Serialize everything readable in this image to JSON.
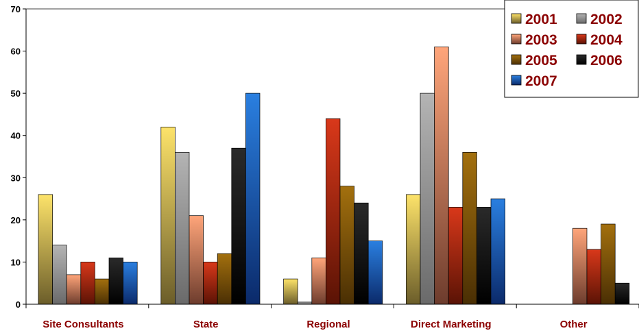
{
  "chart_data": {
    "type": "bar",
    "categories": [
      "Site Consultants",
      "State",
      "Regional",
      "Direct Marketing",
      "Other"
    ],
    "series": [
      {
        "name": "2001",
        "color_top": "#fde36a",
        "color_bottom": "#6b5d2a",
        "values": [
          26,
          42,
          6,
          26,
          null
        ]
      },
      {
        "name": "2002",
        "color_top": "#b4b4b4",
        "color_bottom": "#6a6a6a",
        "values": [
          14,
          36,
          0.5,
          50,
          null
        ]
      },
      {
        "name": "2003",
        "color_top": "#ffa57a",
        "color_bottom": "#6d3c2d",
        "values": [
          7,
          21,
          11,
          61,
          18
        ]
      },
      {
        "name": "2004",
        "color_top": "#d9381a",
        "color_bottom": "#5a1305",
        "values": [
          10,
          10,
          44,
          23,
          13
        ]
      },
      {
        "name": "2005",
        "color_top": "#a3700e",
        "color_bottom": "#4a2f04",
        "values": [
          6,
          12,
          28,
          36,
          19
        ]
      },
      {
        "name": "2006",
        "color_top": "#2a2a2a",
        "color_bottom": "#000000",
        "values": [
          11,
          37,
          24,
          23,
          5
        ]
      },
      {
        "name": "2007",
        "color_top": "#2a7fe0",
        "color_bottom": "#0b2a6a",
        "values": [
          10,
          50,
          15,
          25,
          null
        ]
      }
    ],
    "ylim": [
      0,
      70
    ],
    "yticks": [
      0,
      10,
      20,
      30,
      40,
      50,
      60,
      70
    ],
    "title": "",
    "xlabel": "",
    "ylabel": "",
    "legend_position": "top-right",
    "grid": false
  }
}
